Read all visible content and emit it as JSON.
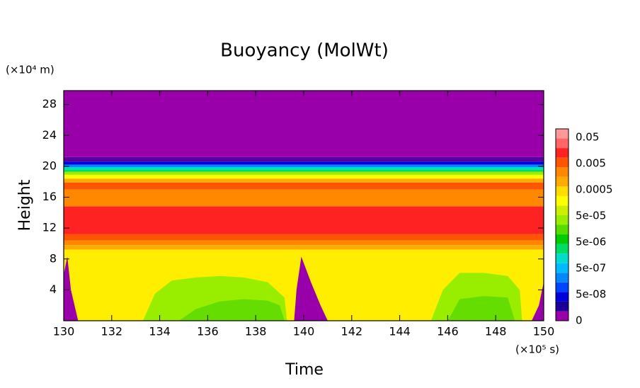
{
  "chart_data": {
    "type": "contour",
    "title": "Buoyancy (MolWt)",
    "xlabel": "Time",
    "ylabel": "Height",
    "x_unit": "(×10⁵ s)",
    "y_unit": "(×10⁴ m)",
    "xlim": [
      130,
      150
    ],
    "ylim": [
      0,
      29.8
    ],
    "xticks": [
      130,
      132,
      134,
      136,
      138,
      140,
      142,
      144,
      146,
      148,
      150
    ],
    "yticks": [
      4,
      8,
      12,
      16,
      20,
      24,
      28
    ],
    "layers": [
      {
        "color": "#9900aa",
        "y": [
          21.2,
          29.8
        ]
      },
      {
        "color": "#5a00a0",
        "y": [
          20.6,
          21.2
        ]
      },
      {
        "color": "#0000dd",
        "y": [
          20.2,
          20.6
        ]
      },
      {
        "color": "#0088ff",
        "y": [
          19.9,
          20.2
        ]
      },
      {
        "color": "#00ddcc",
        "y": [
          19.6,
          19.9
        ]
      },
      {
        "color": "#00dd66",
        "y": [
          19.3,
          19.6
        ]
      },
      {
        "color": "#99ee00",
        "y": [
          18.9,
          19.3
        ]
      },
      {
        "color": "#ffff00",
        "y": [
          18.4,
          18.9
        ]
      },
      {
        "color": "#ffaa00",
        "y": [
          17.9,
          18.4
        ]
      },
      {
        "color": "#ff5500",
        "y": [
          17.0,
          17.9
        ]
      },
      {
        "color": "#ff8800",
        "y": [
          14.8,
          17.0
        ]
      },
      {
        "color": "#ff2222",
        "y": [
          11.2,
          14.8
        ]
      },
      {
        "color": "#ff5500",
        "y": [
          10.4,
          11.2
        ]
      },
      {
        "color": "#ff8800",
        "y": [
          9.8,
          10.4
        ]
      },
      {
        "color": "#ffaa00",
        "y": [
          9.2,
          9.8
        ]
      },
      {
        "color": "#ffee00",
        "y": [
          0,
          9.2
        ]
      }
    ],
    "regions": [
      {
        "color": "#99ee00",
        "x": [
          133.3,
          133.8,
          134.5,
          135.5,
          136.5,
          137.5,
          138.5,
          139.2,
          139.3
        ],
        "y": [
          0,
          3.5,
          5.2,
          5.6,
          5.8,
          5.6,
          5,
          3,
          0
        ]
      },
      {
        "color": "#66dd00",
        "x": [
          134.8,
          135.5,
          136.5,
          137.5,
          138.5,
          139,
          139.2
        ],
        "y": [
          0,
          1.5,
          2.5,
          2.8,
          2.6,
          2,
          0
        ]
      },
      {
        "color": "#99ee00",
        "x": [
          145.3,
          145.8,
          146.5,
          147.5,
          148.5,
          149,
          149.1
        ],
        "y": [
          0,
          4,
          6.2,
          6.2,
          5.8,
          4,
          0
        ]
      },
      {
        "color": "#66dd00",
        "x": [
          146,
          146.5,
          147.5,
          148.5,
          148.8
        ],
        "y": [
          0,
          2.8,
          3.2,
          3,
          0
        ]
      },
      {
        "color": "#9900aa",
        "x": [
          130,
          130,
          130.15,
          130.3,
          130.6
        ],
        "y": [
          0,
          6,
          8.3,
          4,
          0
        ]
      },
      {
        "color": "#9900aa",
        "x": [
          139.6,
          139.7,
          139.9,
          140.3,
          140.7,
          141.0
        ],
        "y": [
          0,
          4,
          8.3,
          5,
          2,
          0
        ]
      },
      {
        "color": "#9900aa",
        "x": [
          149.5,
          149.8,
          150,
          150
        ],
        "y": [
          0,
          2,
          5,
          0
        ]
      }
    ],
    "colorbar": {
      "colors": [
        "#9900aa",
        "#1a0099",
        "#0000dd",
        "#0044ff",
        "#0088ff",
        "#00bbff",
        "#00ddcc",
        "#00dd66",
        "#00cc00",
        "#55dd00",
        "#99ee00",
        "#ccee00",
        "#ffff00",
        "#ffdd00",
        "#ffaa00",
        "#ff8800",
        "#ff5500",
        "#ff2222",
        "#ff6666",
        "#ff9999"
      ],
      "labels": [
        "0",
        "5e-08",
        "5e-07",
        "5e-06",
        "5e-05",
        "0.0005",
        "0.005",
        "0.05"
      ]
    }
  }
}
